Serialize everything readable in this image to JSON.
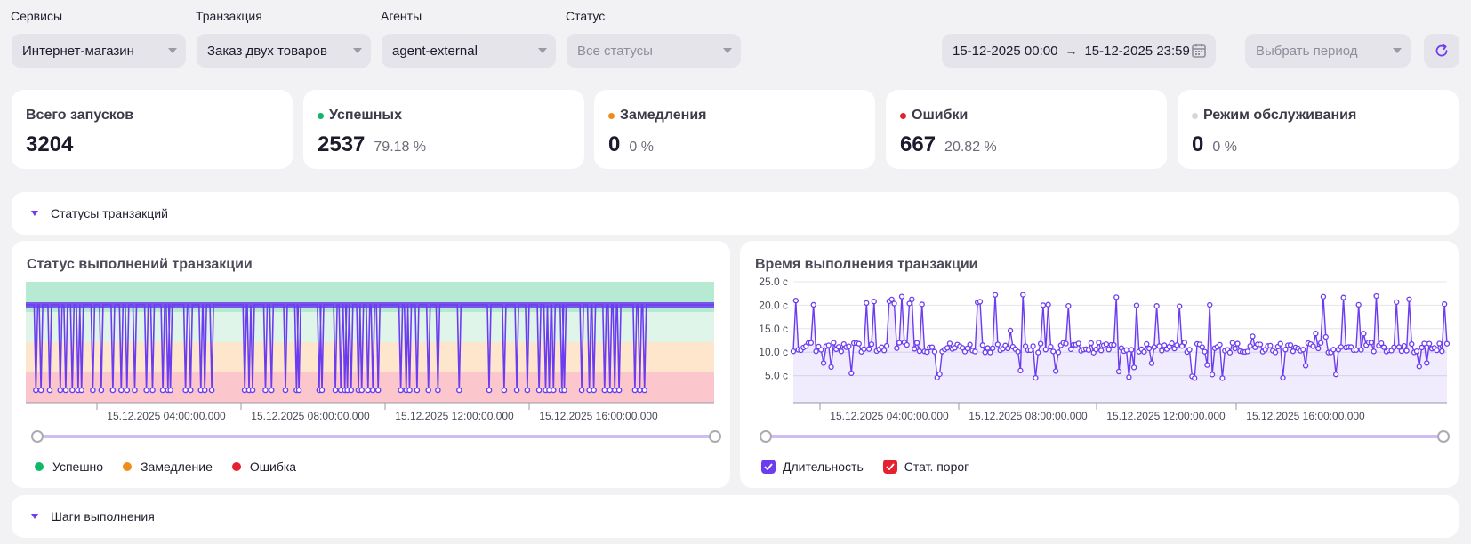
{
  "filters": {
    "services": {
      "label": "Сервисы",
      "value": "Интернет-магазин"
    },
    "transaction": {
      "label": "Транзакция",
      "value": "Заказ двух товаров"
    },
    "agents": {
      "label": "Агенты",
      "value": "agent-external"
    },
    "status": {
      "label": "Статус",
      "value": "Все статусы"
    },
    "date_from": "15-12-2025 00:00",
    "date_to": "15-12-2025 23:59",
    "period": "Выбрать период"
  },
  "stats": [
    {
      "title": "Всего запусков",
      "value": "3204",
      "percent": "",
      "color": ""
    },
    {
      "title": "Успешных",
      "value": "2537",
      "percent": "79.18 %",
      "color": "#12b76a"
    },
    {
      "title": "Замедления",
      "value": "0",
      "percent": "0 %",
      "color": "#f08c1a"
    },
    {
      "title": "Ошибки",
      "value": "667",
      "percent": "20.82 %",
      "color": "#e5202f"
    },
    {
      "title": "Режим обслуживания",
      "value": "0",
      "percent": "0 %",
      "color": "#d6d6dc"
    }
  ],
  "sections": {
    "statuses": "Статусы транзакций",
    "steps": "Шаги выполнения"
  },
  "colors": {
    "accent": "#6c3df0",
    "success": "#12b76a",
    "slow": "#f08c1a",
    "error": "#e5202f"
  },
  "chart_data": [
    {
      "type": "line",
      "title": "Статус выполнений транзакции",
      "x_ticks": [
        "15.12.2025 04:00:00.000",
        "15.12.2025 08:00:00.000",
        "15.12.2025 12:00:00.000",
        "15.12.2025 16:00:00.000"
      ],
      "bands": [
        "Успешно",
        "Замедление",
        "Ошибка"
      ],
      "legend": [
        {
          "name": "Успешно",
          "color": "#12b76a"
        },
        {
          "name": "Замедление",
          "color": "#f08c1a"
        },
        {
          "name": "Ошибка",
          "color": "#e5202f"
        }
      ],
      "error_runs_approx": 120
    },
    {
      "type": "line",
      "title": "Время выполнения транзакции",
      "y_ticks": [
        "25.0 с",
        "20.0 с",
        "15.0 с",
        "10.0 с",
        "5.0 с"
      ],
      "ylim": [
        0,
        25
      ],
      "x_ticks": [
        "15.12.2025 04:00:00.000",
        "15.12.2025 08:00:00.000",
        "15.12.2025 12:00:00.000",
        "15.12.2025 16:00:00.000"
      ],
      "typical_value": 11,
      "legend": [
        {
          "name": "Длительность",
          "color": "#6c3df0"
        },
        {
          "name": "Стат. порог",
          "color": "#e5202f"
        }
      ]
    }
  ]
}
